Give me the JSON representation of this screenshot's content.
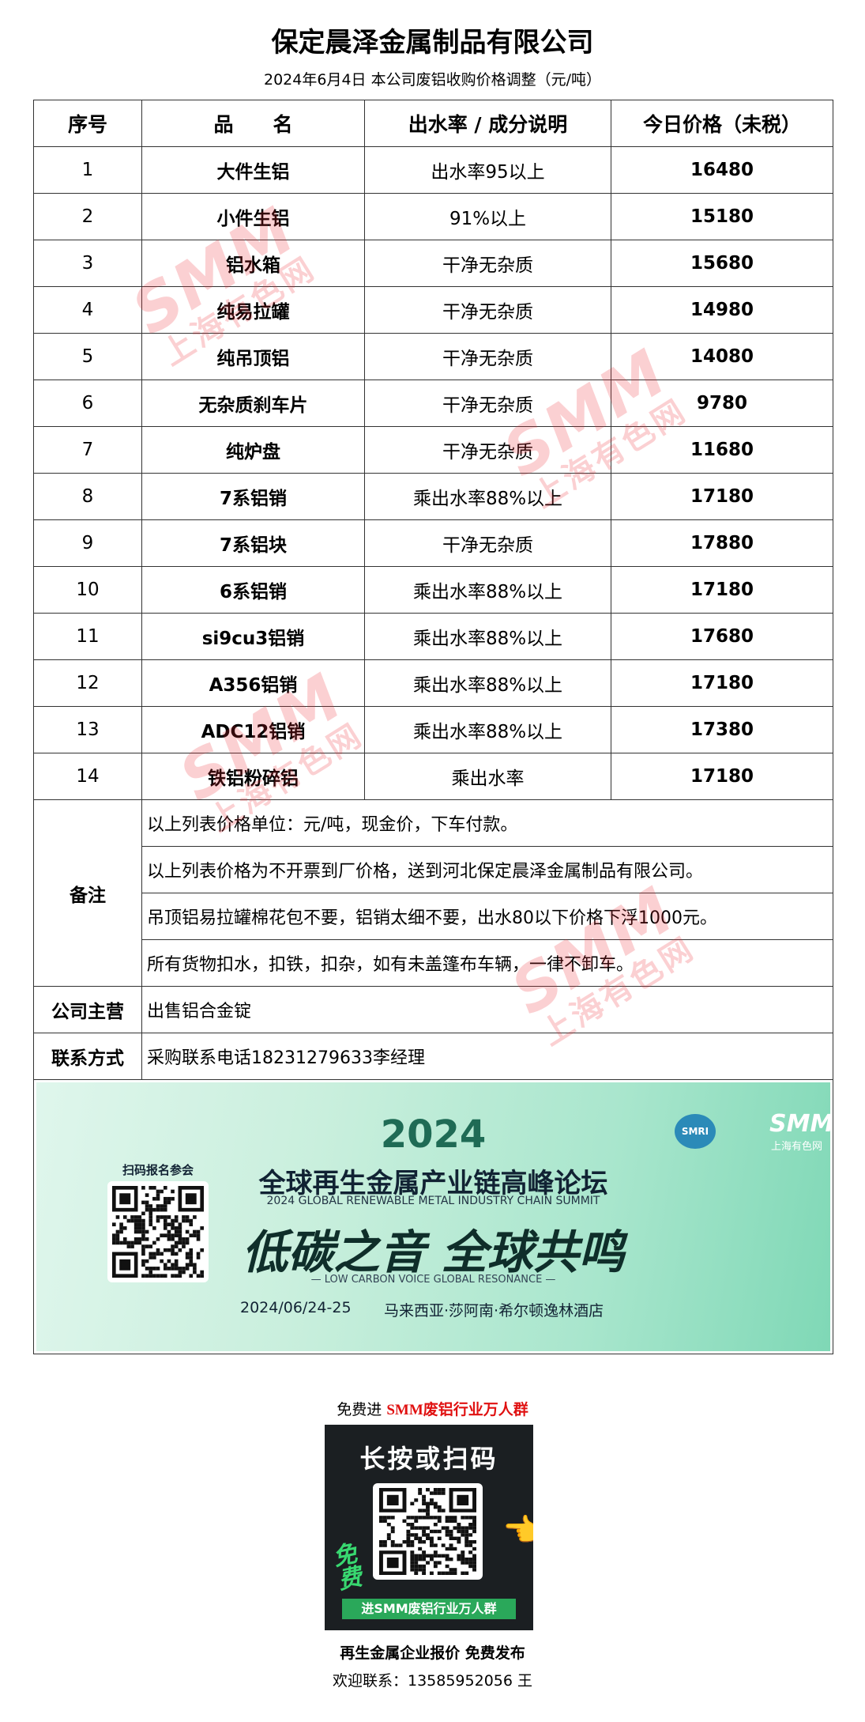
{
  "header": {
    "title": "保定晨泽金属制品有限公司",
    "subtitle": "2024年6月4日 本公司废铝收购价格调整（元/吨）"
  },
  "table": {
    "columns": [
      "序号",
      "品　　名",
      "出水率 / 成分说明",
      "今日价格（未税）"
    ],
    "rows": [
      [
        1,
        "大件生铝",
        "出水率95以上",
        16480
      ],
      [
        2,
        "小件生铝",
        "91%以上",
        15180
      ],
      [
        3,
        "铝水箱",
        "干净无杂质",
        15680
      ],
      [
        4,
        "纯易拉罐",
        "干净无杂质",
        14980
      ],
      [
        5,
        "纯吊顶铝",
        "干净无杂质",
        14080
      ],
      [
        6,
        "无杂质刹车片",
        "干净无杂质",
        9780
      ],
      [
        7,
        "纯炉盘",
        "干净无杂质",
        11680
      ],
      [
        8,
        "7系铝销",
        "乘出水率88%以上",
        17180
      ],
      [
        9,
        "7系铝块",
        "干净无杂质",
        17880
      ],
      [
        10,
        "6系铝销",
        "乘出水率88%以上",
        17180
      ],
      [
        11,
        "si9cu3铝销",
        "乘出水率88%以上",
        17680
      ],
      [
        12,
        "A356铝销",
        "乘出水率88%以上",
        17180
      ],
      [
        13,
        "ADC12铝销",
        "乘出水率88%以上",
        17380
      ],
      [
        14,
        "铁铝粉碎铝",
        "乘出水率",
        17180
      ]
    ],
    "remarks_label": "备注",
    "remarks": [
      "以上列表价格单位：元/吨，现金价，下车付款。",
      "以上列表价格为不开票到厂价格，送到河北保定晨泽金属制品有限公司。",
      "吊顶铝易拉罐棉花包不要，铝销太细不要，出水80以下价格下浮1000元。",
      "所有货物扣水，扣铁，扣杂，如有未盖篷布车辆，一律不卸车。"
    ],
    "business_label": "公司主营",
    "business": "出售铝合金锭",
    "contact_label": "联系方式",
    "contact": "采购联系电话18231279633李经理"
  },
  "banner": {
    "year": "2024",
    "title": "全球再生金属产业链高峰论坛",
    "title_en": "2024 GLOBAL RENEWABLE METAL INDUSTRY CHAIN SUMMIT",
    "slogan": "低碳之音 全球共鸣",
    "slogan_en": "— LOW CARBON VOICE GLOBAL RESONANCE —",
    "date": "2024/06/24-25",
    "venue": "马来西亚·莎阿南·希尔顿逸林酒店",
    "scan": "扫码报名参会",
    "logo_badge": "SMRI",
    "logo": "SMM",
    "logo_sub": "上海有色网"
  },
  "watermark": {
    "brand": "SMM",
    "name": "上海有色网"
  },
  "footer": {
    "invite_prefix": "免费进",
    "invite_group": "SMM废铝行业万人群",
    "qr_title": "长按或扫码",
    "qr_free": "免费",
    "qr_bottom": "进SMM废铝行业万人群",
    "line1": "再生金属企业报价 免费发布",
    "line2": "欢迎联系：13585952056 王"
  }
}
